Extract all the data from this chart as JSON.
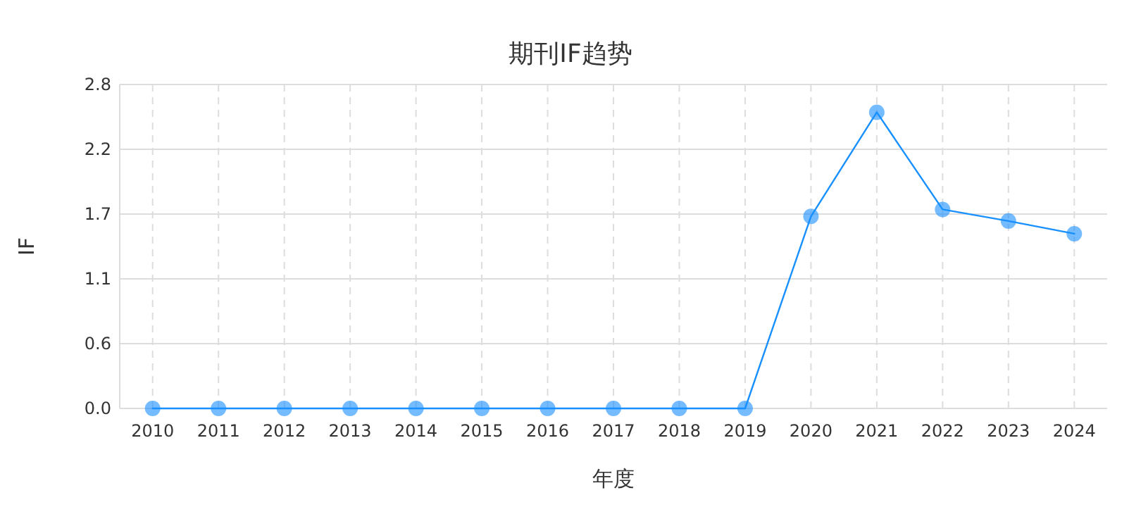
{
  "chart_data": {
    "type": "line",
    "title": "期刊IF趋势",
    "xlabel": "年度",
    "ylabel": "IF",
    "categories": [
      "2010",
      "2011",
      "2012",
      "2013",
      "2014",
      "2015",
      "2016",
      "2017",
      "2018",
      "2019",
      "2020",
      "2021",
      "2022",
      "2023",
      "2024"
    ],
    "series": [
      {
        "color": "#1890ff",
        "values": [
          0,
          0,
          0,
          0,
          0,
          0,
          0,
          0,
          0,
          0,
          1.66,
          2.56,
          1.72,
          1.62,
          1.51
        ]
      }
    ],
    "ylim": [
      0,
      2.8
    ],
    "yticks": [
      {
        "value": 0,
        "label": "0.0"
      },
      {
        "value": 0.56,
        "label": "0.6"
      },
      {
        "value": 1.12,
        "label": "1.1"
      },
      {
        "value": 1.68,
        "label": "1.7"
      },
      {
        "value": 2.24,
        "label": "2.2"
      },
      2.8
    ],
    "grid": true,
    "marker": "circle",
    "line_style": "solid"
  }
}
